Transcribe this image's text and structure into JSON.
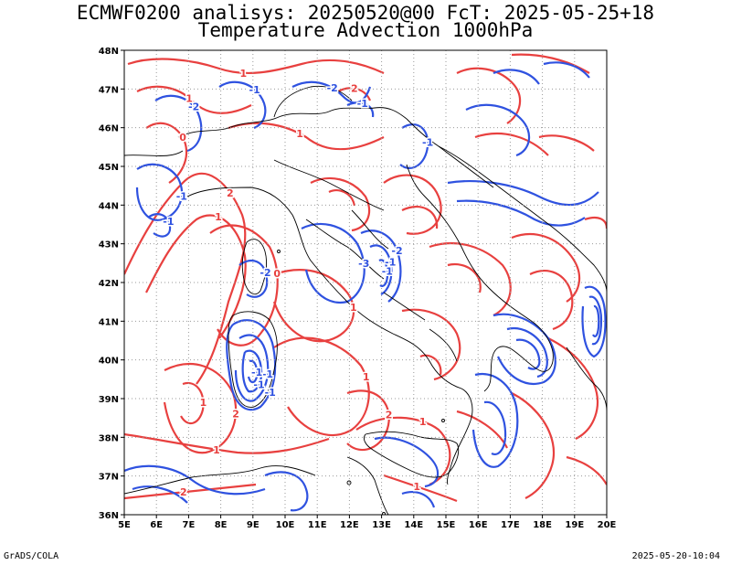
{
  "title_line1": "ECMWF0200 analisys: 20250520@00 FcT: 2025-05-25+18",
  "title_line2": "Temperature Advection 1000hPa",
  "lon_labels": [
    "5E",
    "6E",
    "7E",
    "8E",
    "9E",
    "10E",
    "11E",
    "12E",
    "13E",
    "14E",
    "15E",
    "16E",
    "17E",
    "18E",
    "19E",
    "20E"
  ],
  "lat_labels": [
    "36N",
    "37N",
    "38N",
    "39N",
    "40N",
    "41N",
    "42N",
    "43N",
    "44N",
    "45N",
    "46N",
    "47N",
    "48N"
  ],
  "contour_labels": {
    "positive": [
      "2",
      "1",
      "0",
      "1",
      "2",
      "1",
      "1",
      "2",
      "1",
      "1",
      "1",
      "2",
      "1",
      "1",
      "0",
      "1",
      "2"
    ],
    "negative": [
      "-1",
      "-1",
      "-1",
      "-1",
      "-2",
      "-1",
      "-1",
      "-2",
      "-1",
      "-2",
      "-1",
      "-3",
      "-2",
      "-1",
      "-1",
      "-1"
    ]
  },
  "colors": {
    "positive": "#e8403f",
    "negative": "#2f52e0",
    "coast": "#000000",
    "grid": "#999999"
  },
  "footer_left": "GrADS/COLA",
  "footer_right": "2025-05-20-10:04"
}
